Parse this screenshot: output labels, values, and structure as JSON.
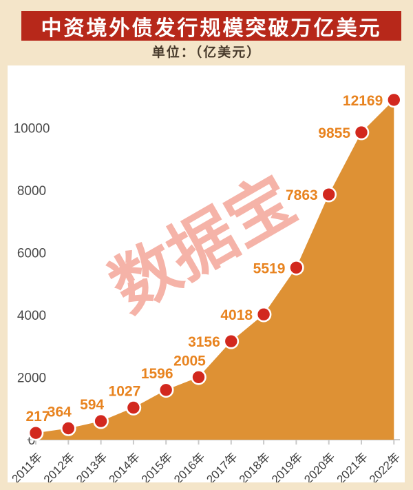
{
  "header": {
    "title": "中资境外债发行规模突破万亿美元",
    "unit_label": "单位：（亿美元）"
  },
  "chart_data": {
    "type": "area",
    "title": "中资境外债发行规模突破万亿美元",
    "unit": "亿美元",
    "categories": [
      "2011年",
      "2012年",
      "2013年",
      "2014年",
      "2015年",
      "2016年",
      "2017年",
      "2018年",
      "2019年",
      "2020年",
      "2021年",
      "2022年"
    ],
    "values": [
      217,
      364,
      594,
      1027,
      1596,
      2005,
      3156,
      4018,
      5519,
      7863,
      9855,
      12169
    ],
    "xlabel": "",
    "ylabel": "",
    "yticks": [
      0,
      2000,
      4000,
      6000,
      8000,
      10000
    ],
    "ylim": [
      0,
      12500
    ],
    "grid": false,
    "legend": "none",
    "watermark": "数据宝",
    "colors": {
      "page_background": "#f4e5c9",
      "banner": "#b7281a",
      "title_text": "#ffffff",
      "unit_text": "#473a2b",
      "plot_background": "#ffffff",
      "area_fill": "#de9134",
      "dot_fill": "#d2281e",
      "dot_ring": "#ffffff",
      "value_label": "#e8831f",
      "axis_line": "#c9c9c9",
      "x_tick_label": "#3c3c3c",
      "y_tick_label": "#4a4a4a",
      "watermark_text": "#f5b3a8"
    }
  }
}
